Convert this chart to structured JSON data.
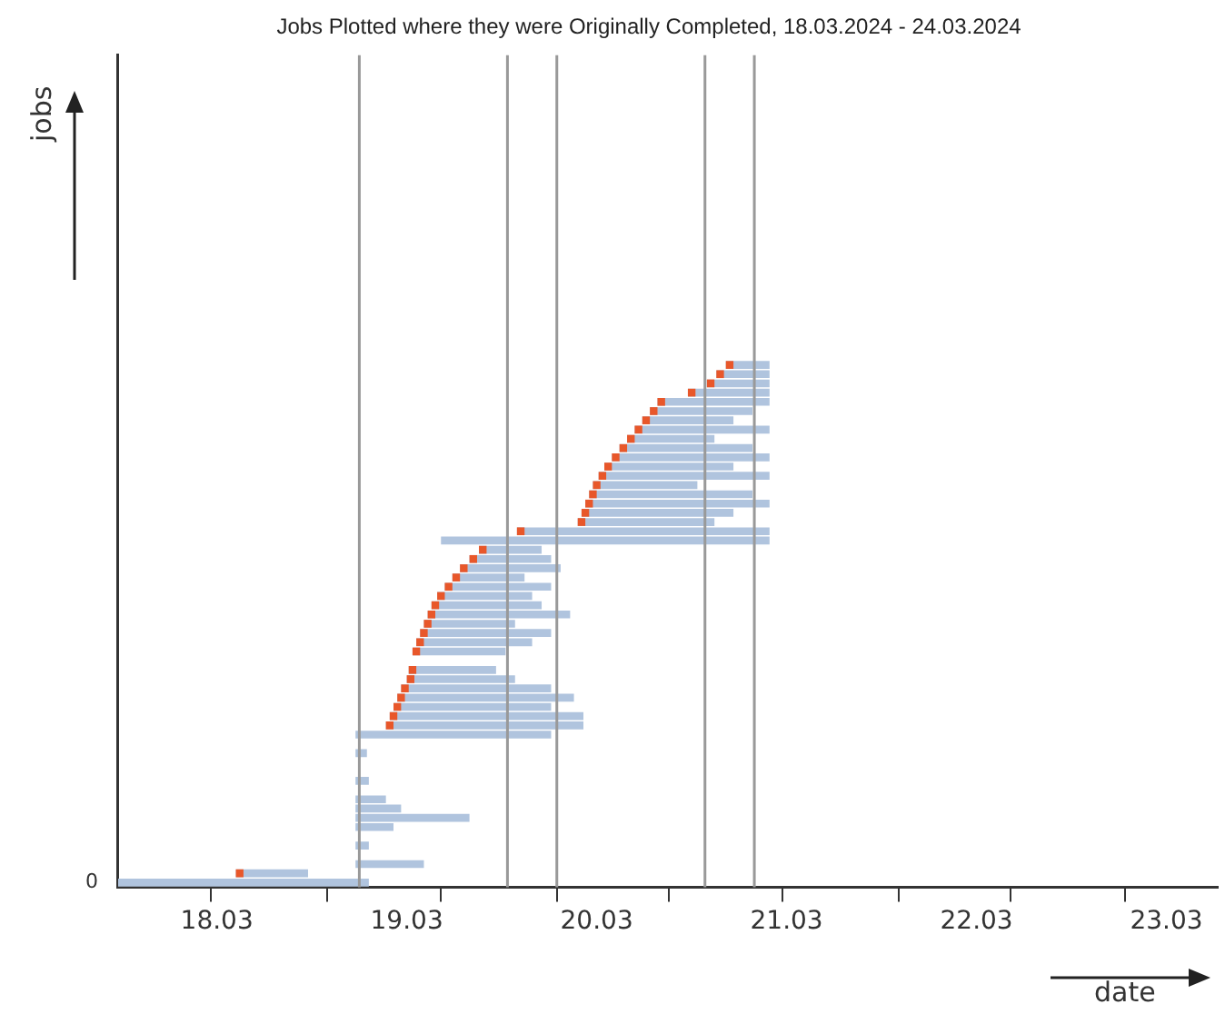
{
  "chart_data": {
    "type": "bar",
    "orientation": "horizontal",
    "title": "Jobs Plotted where they were Originally Completed, 18.03.2024 - 24.03.2024",
    "xlabel": "date",
    "ylabel": "jobs",
    "categories": [
      null,
      null,
      null,
      null,
      null,
      null,
      null,
      null,
      null,
      null,
      null,
      null,
      null,
      null,
      null,
      null,
      null,
      null,
      null,
      null,
      null,
      null,
      null,
      null,
      null,
      null,
      null,
      null,
      null,
      null,
      null,
      null,
      null,
      null,
      null,
      null,
      null,
      null,
      null,
      null,
      null,
      null,
      null,
      null,
      null,
      null,
      null,
      null,
      null,
      null,
      null,
      null,
      null,
      null,
      null,
      null,
      null,
      null,
      null,
      null,
      null,
      null,
      null,
      null,
      null,
      null,
      null,
      null,
      null,
      null,
      null,
      null,
      null,
      null,
      null,
      null,
      null,
      null,
      null,
      null,
      null,
      null,
      null,
      null,
      null,
      null,
      null,
      null,
      null,
      "0"
    ],
    "series": [
      {
        "color": "#e8572a",
        "base": [
          null,
          null,
          null,
          null,
          null,
          null,
          null,
          null,
          null,
          null,
          null,
          null,
          null,
          null,
          null,
          null,
          null,
          null,
          null,
          null,
          null,
          null,
          null,
          null,
          null,
          null,
          null,
          null,
          null,
          null,
          null,
          null,
          null,
          20.71,
          20.66,
          20.61,
          20.51,
          20.35,
          20.31,
          20.27,
          20.23,
          20.19,
          20.15,
          20.11,
          20.07,
          20.04,
          20.01,
          19.99,
          19.97,
          19.95,
          19.93,
          19.61,
          null,
          19.41,
          19.36,
          19.31,
          19.27,
          19.23,
          19.19,
          19.16,
          19.14,
          19.12,
          19.1,
          19.08,
          19.06,
          null,
          19.04,
          19.03,
          19.0,
          18.98,
          18.96,
          18.94,
          18.92,
          null,
          null,
          null,
          null,
          null,
          null,
          null,
          null,
          null,
          null,
          null,
          null,
          null,
          null,
          null,
          18.13,
          null
        ],
        "values": [
          null,
          null,
          null,
          null,
          null,
          null,
          null,
          null,
          null,
          null,
          null,
          null,
          null,
          null,
          null,
          null,
          null,
          null,
          null,
          null,
          null,
          null,
          null,
          null,
          null,
          null,
          null,
          null,
          null,
          null,
          null,
          null,
          null,
          0.04,
          0.04,
          0.04,
          0.04,
          0.04,
          0.04,
          0.04,
          0.04,
          0.04,
          0.04,
          0.04,
          0.04,
          0.04,
          0.04,
          0.04,
          0.04,
          0.04,
          0.04,
          0.04,
          null,
          0.04,
          0.04,
          0.04,
          0.04,
          0.04,
          0.04,
          0.04,
          0.04,
          0.04,
          0.04,
          0.04,
          0.04,
          null,
          0.04,
          0.04,
          0.04,
          0.04,
          0.04,
          0.04,
          0.04,
          null,
          null,
          null,
          null,
          null,
          null,
          null,
          null,
          null,
          null,
          null,
          null,
          null,
          null,
          null,
          0.04,
          null
        ]
      },
      {
        "color": "#b0c4de",
        "base": [
          null,
          null,
          null,
          null,
          null,
          null,
          null,
          null,
          null,
          null,
          null,
          null,
          null,
          null,
          null,
          null,
          null,
          null,
          null,
          null,
          null,
          null,
          null,
          null,
          null,
          null,
          null,
          null,
          null,
          null,
          null,
          null,
          null,
          20.71,
          20.66,
          20.61,
          20.51,
          20.35,
          20.31,
          20.27,
          20.23,
          20.19,
          20.15,
          20.11,
          20.07,
          20.04,
          20.01,
          19.99,
          19.97,
          19.95,
          19.93,
          19.61,
          19.21,
          19.41,
          19.36,
          19.31,
          19.27,
          19.23,
          19.19,
          19.16,
          19.14,
          19.12,
          19.1,
          19.08,
          19.06,
          null,
          19.04,
          19.03,
          19.0,
          18.98,
          18.96,
          18.94,
          18.92,
          18.76,
          null,
          18.76,
          null,
          null,
          18.76,
          null,
          18.76,
          18.76,
          18.76,
          18.76,
          null,
          18.76,
          null,
          18.76,
          18.13,
          17.51
        ],
        "values": [
          null,
          null,
          null,
          null,
          null,
          null,
          null,
          null,
          null,
          null,
          null,
          null,
          null,
          null,
          null,
          null,
          null,
          null,
          null,
          null,
          null,
          null,
          null,
          null,
          null,
          null,
          null,
          null,
          null,
          null,
          null,
          null,
          null,
          0.23,
          0.28,
          0.33,
          0.43,
          0.59,
          0.54,
          0.48,
          0.71,
          0.46,
          0.7,
          0.83,
          0.68,
          0.9,
          0.55,
          0.86,
          0.97,
          0.8,
          0.72,
          1.33,
          1.73,
          0.33,
          0.43,
          0.53,
          0.38,
          0.56,
          0.5,
          0.58,
          0.75,
          0.48,
          0.69,
          0.61,
          0.49,
          null,
          0.46,
          0.57,
          0.79,
          0.93,
          0.83,
          1.02,
          1.04,
          1.03,
          null,
          0.06,
          null,
          null,
          0.07,
          null,
          0.16,
          0.24,
          0.6,
          0.2,
          null,
          0.07,
          null,
          0.36,
          0.38,
          1.32
        ]
      }
    ],
    "xlim": [
      17.51,
      23.3
    ],
    "xticks": [
      {
        "value": 18.0,
        "label": null
      },
      18.03,
      {
        "value": 18.61,
        "label": null
      },
      19.03,
      {
        "value": 19.21,
        "label": null
      },
      {
        "value": 19.82,
        "label": null
      },
      20.03,
      {
        "value": 20.41,
        "label": null
      },
      {
        "value": 21.01,
        "label": null
      },
      21.03,
      {
        "value": 21.62,
        "label": null
      },
      22.03,
      {
        "value": 22.21,
        "label": null
      },
      {
        "value": 22.81,
        "label": null
      },
      23.03
    ],
    "ref_lines": [
      {
        "axis": "x",
        "value": 18.78,
        "color": "#999999"
      },
      {
        "axis": "x",
        "value": 19.56,
        "color": "#999999"
      },
      {
        "axis": "x",
        "value": 19.82,
        "color": "#999999"
      },
      {
        "axis": "x",
        "value": 20.6,
        "color": "#999999"
      },
      {
        "axis": "x",
        "value": 20.86,
        "color": "#999999"
      }
    ]
  }
}
